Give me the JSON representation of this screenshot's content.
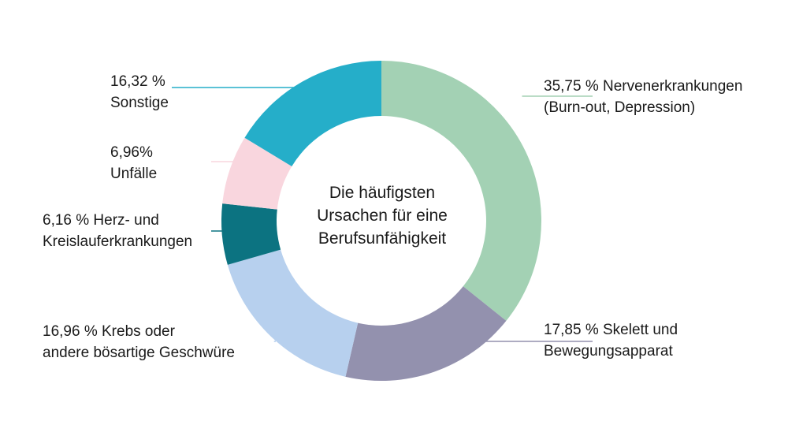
{
  "chart_data": {
    "type": "pie",
    "title": "",
    "center_text": [
      "Die häufigsten",
      "Ursachen für eine",
      "Berufsunfähigkeit"
    ],
    "slices": [
      {
        "value": 35.75,
        "label_lines": [
          "35,75 % Nervenerkrankungen",
          "(Burn-out, Depression)"
        ],
        "color": "#a3d1b4"
      },
      {
        "value": 17.85,
        "label_lines": [
          "17,85 % Skelett und",
          "Bewegungsapparat"
        ],
        "color": "#9391ae"
      },
      {
        "value": 16.96,
        "label_lines": [
          "16,96 % Krebs oder",
          "andere bösartige Geschwüre"
        ],
        "color": "#b7d0ee"
      },
      {
        "value": 6.16,
        "label_lines": [
          "6,16 % Herz- und",
          "Kreislauferkrankungen"
        ],
        "color": "#0c7381"
      },
      {
        "value": 6.96,
        "label_lines": [
          "6,96%",
          "Unfälle"
        ],
        "color": "#f9d6de"
      },
      {
        "value": 16.32,
        "label_lines": [
          "16,32 %",
          "Sonstige"
        ],
        "color": "#25aec9"
      }
    ]
  }
}
